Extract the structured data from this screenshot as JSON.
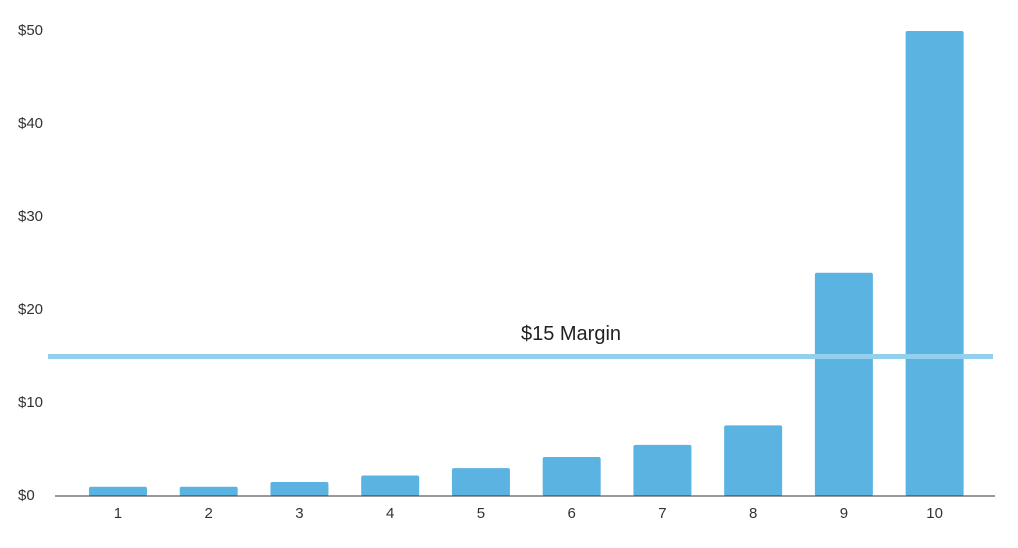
{
  "chart_data": {
    "type": "bar",
    "categories": [
      "1",
      "2",
      "3",
      "4",
      "5",
      "6",
      "7",
      "8",
      "9",
      "10"
    ],
    "values": [
      1.0,
      1.0,
      1.5,
      2.2,
      3.0,
      4.2,
      5.5,
      7.6,
      24,
      50
    ],
    "color": "#5ab3e0",
    "ylim": [
      0,
      50
    ],
    "yticks": [
      {
        "value": 0,
        "label": "$0"
      },
      {
        "value": 10,
        "label": "$10"
      },
      {
        "value": 20,
        "label": "$20"
      },
      {
        "value": 30,
        "label": "$30"
      },
      {
        "value": 40,
        "label": "$40"
      },
      {
        "value": 50,
        "label": "$50"
      }
    ],
    "reference_line": {
      "value": 15,
      "label": "$15 Margin",
      "color": "#92d0ee"
    },
    "grid": false
  }
}
